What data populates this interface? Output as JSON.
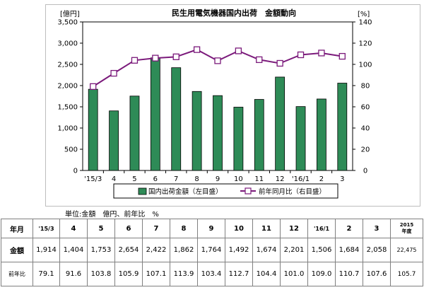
{
  "chart_data": {
    "type": "bar+line",
    "title": "民生用電気機器国内出荷　金額動向",
    "y_left_unit": "[億円]",
    "y_right_unit": "[%]",
    "y_left_range": [
      0,
      3500
    ],
    "y_left_ticks": [
      "0",
      "500",
      "1,000",
      "1,500",
      "2,000",
      "2,500",
      "3,000",
      "3,500"
    ],
    "y_right_range": [
      0,
      140
    ],
    "y_right_ticks": [
      "0",
      "20",
      "40",
      "60",
      "80",
      "100",
      "120",
      "140"
    ],
    "categories": [
      "'15/3",
      "4",
      "5",
      "6",
      "7",
      "8",
      "9",
      "10",
      "11",
      "12",
      "'16/1",
      "2",
      "3"
    ],
    "series": [
      {
        "name": "国内出荷金額（左目盛）",
        "type": "bar",
        "axis": "left",
        "color": "#2e8b57",
        "values": [
          1914,
          1404,
          1753,
          2654,
          2422,
          1862,
          1764,
          1492,
          1674,
          2201,
          1506,
          1684,
          2058
        ]
      },
      {
        "name": "前年同月比（右目盛）",
        "type": "line",
        "axis": "right",
        "color": "#7b1a7b",
        "values": [
          79.1,
          91.6,
          103.8,
          105.9,
          107.1,
          113.9,
          103.4,
          112.7,
          104.4,
          101.0,
          109.0,
          110.7,
          107.6
        ]
      }
    ],
    "grid": false,
    "legend_position": "bottom"
  },
  "unit_note": "単位:金額　億円、前年比　%",
  "table": {
    "header_label": "年月",
    "months": [
      "'15/3",
      "4",
      "5",
      "6",
      "7",
      "8",
      "9",
      "10",
      "11",
      "12",
      "'16/1",
      "2",
      "3"
    ],
    "fy_year": "2015",
    "fy_label": "年度",
    "amount_label": "金額",
    "amounts": [
      "1,914",
      "1,404",
      "1,753",
      "2,654",
      "2,422",
      "1,862",
      "1,764",
      "1,492",
      "1,674",
      "2,201",
      "1,506",
      "1,684",
      "2,058"
    ],
    "fy_amount": "22,475",
    "ratio_label": "前年比",
    "ratios": [
      "79.1",
      "91.6",
      "103.8",
      "105.9",
      "107.1",
      "113.9",
      "103.4",
      "112.7",
      "104.4",
      "101.0",
      "109.0",
      "110.7",
      "107.6"
    ],
    "fy_ratio": "105.7"
  }
}
